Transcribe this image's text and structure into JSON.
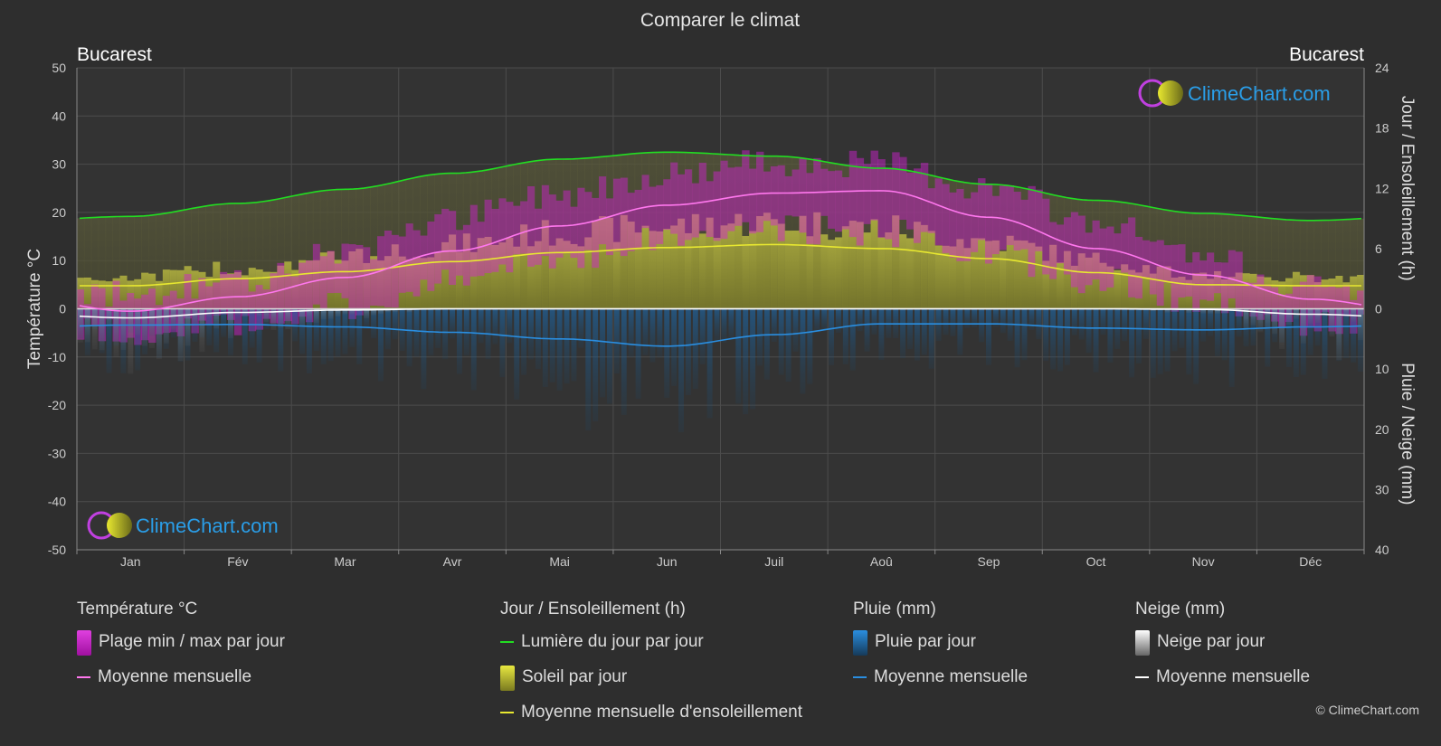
{
  "title": "Comparer le climat",
  "city_left": "Bucarest",
  "city_right": "Bucarest",
  "brand": "ClimeChart.com",
  "copyright": "© ClimeChart.com",
  "colors": {
    "background": "#2e2e2e",
    "temp_range": "#d61fd6",
    "temp_avg": "#ff77ee",
    "daylight": "#22dd22",
    "sunshine_fill": "#a8a83a",
    "sunshine_avg": "#e8e830",
    "rain": "#1a7fd6",
    "rain_avg": "#2a8ee0",
    "snow": "#aaaaaa",
    "snow_avg": "#ffffff"
  },
  "chart_data": {
    "type": "line",
    "months": [
      "Jan",
      "Fév",
      "Mar",
      "Avr",
      "Mai",
      "Jun",
      "Juil",
      "Aoû",
      "Sep",
      "Oct",
      "Nov",
      "Déc"
    ],
    "left_axis": {
      "label": "Température °C",
      "min": -50,
      "max": 50,
      "ticks": [
        50,
        40,
        30,
        20,
        10,
        0,
        -10,
        -20,
        -30,
        -40,
        -50
      ]
    },
    "right_axis_top": {
      "label": "Jour / Ensoleillement (h)",
      "min": 0,
      "max": 24,
      "ticks": [
        24,
        18,
        12,
        6,
        0
      ]
    },
    "right_axis_bottom": {
      "label": "Pluie / Neige (mm)",
      "min": 0,
      "max": 40,
      "ticks": [
        0,
        10,
        20,
        30,
        40
      ]
    },
    "series": [
      {
        "name": "Lumière du jour par jour",
        "unit": "h",
        "values": [
          9.2,
          10.5,
          11.9,
          13.5,
          14.9,
          15.6,
          15.2,
          14.0,
          12.4,
          10.8,
          9.5,
          8.8
        ]
      },
      {
        "name": "Moyenne mensuelle d'ensoleillement",
        "unit": "h",
        "values": [
          2.3,
          3.0,
          3.7,
          4.7,
          5.6,
          6.1,
          6.4,
          6.0,
          5.0,
          3.6,
          2.4,
          2.3
        ]
      },
      {
        "name": "Moyenne mensuelle",
        "group": "Température °C",
        "unit": "°C",
        "values": [
          -0.5,
          2.5,
          6.5,
          12.0,
          17.2,
          21.5,
          24.0,
          24.5,
          19.0,
          12.5,
          7.0,
          2.0
        ]
      },
      {
        "name": "Temp max moyenne",
        "unit": "°C",
        "values": [
          3.0,
          6.0,
          12.0,
          18.5,
          24.0,
          28.0,
          30.5,
          30.0,
          25.0,
          18.0,
          10.5,
          4.5
        ]
      },
      {
        "name": "Temp min moyenne",
        "unit": "°C",
        "values": [
          -5.0,
          -3.5,
          0.5,
          5.5,
          10.5,
          14.5,
          16.5,
          16.0,
          11.5,
          6.0,
          1.5,
          -3.0
        ]
      },
      {
        "name": "Moyenne mensuelle",
        "group": "Pluie (mm)",
        "unit": "mm",
        "values": [
          2.7,
          2.6,
          3.0,
          3.9,
          5.0,
          6.2,
          4.3,
          2.5,
          2.5,
          3.2,
          3.5,
          3.0
        ]
      },
      {
        "name": "Moyenne mensuelle",
        "group": "Neige (mm)",
        "unit": "mm",
        "values": [
          1.5,
          0.6,
          0.2,
          0.0,
          0.0,
          0.0,
          0.0,
          0.0,
          0.0,
          0.0,
          0.1,
          0.9
        ]
      }
    ]
  },
  "legend": [
    {
      "title": "Température °C",
      "items": [
        {
          "label": "Plage min / max par jour",
          "swatch": "box",
          "color": "#d61fd6"
        },
        {
          "label": "Moyenne mensuelle",
          "swatch": "line",
          "color": "#ff77ee"
        }
      ]
    },
    {
      "title": "Jour / Ensoleillement (h)",
      "items": [
        {
          "label": "Lumière du jour par jour",
          "swatch": "line",
          "color": "#22dd22"
        },
        {
          "label": "Soleil par jour",
          "swatch": "box",
          "color": "#c8c840"
        },
        {
          "label": "Moyenne mensuelle d'ensoleillement",
          "swatch": "line",
          "color": "#e8e830"
        }
      ]
    },
    {
      "title": "Pluie (mm)",
      "items": [
        {
          "label": "Pluie par jour",
          "swatch": "box",
          "color": "#1a7fd6"
        },
        {
          "label": "Moyenne mensuelle",
          "swatch": "line",
          "color": "#2a8ee0"
        }
      ]
    },
    {
      "title": "Neige (mm)",
      "items": [
        {
          "label": "Neige par jour",
          "swatch": "box",
          "color": "#cccccc"
        },
        {
          "label": "Moyenne mensuelle",
          "swatch": "line",
          "color": "#ffffff"
        }
      ]
    }
  ]
}
